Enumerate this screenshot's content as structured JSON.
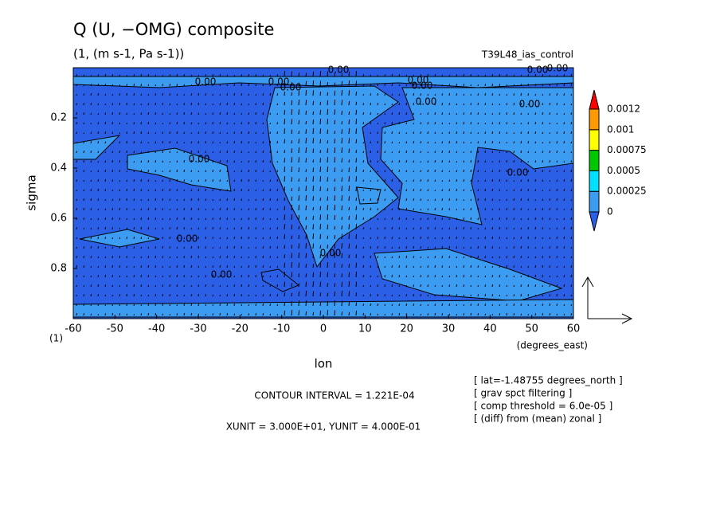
{
  "chart_data": {
    "type": "contour",
    "title": "Q (U, −OMG) composite",
    "subtitle": "(1, (m s-1, Pa s-1))",
    "experiment": "T39L48_ias_control",
    "x_label": "lon",
    "y_label": "sigma",
    "x_unit": "(degrees_east)",
    "y_unit": "(1)",
    "xlim": [
      -60,
      60
    ],
    "xticks": [
      -60,
      -50,
      -40,
      -30,
      -20,
      -10,
      0,
      10,
      20,
      30,
      40,
      50,
      60
    ],
    "ylim": [
      1,
      0
    ],
    "yticks": [
      0.2,
      0.4,
      0.6,
      0.8
    ],
    "contour_interval": "CONTOUR INTERVAL = 1.221E-04",
    "units_note": "XUNIT = 3.000E+01, YUNIT = 4.000E-01",
    "notes": [
      "[ lat=-1.48755 degrees_north ]",
      "[ grav spct filtering ]",
      "[ comp threshold = 6.0e-05 ]",
      "[ (diff) from (mean) zonal ]"
    ],
    "contour_labels": [
      "0.00",
      "0.00",
      "0.00",
      "0.00",
      "0.00",
      "0.00",
      "0.00",
      "0.00",
      "0.00",
      "0.00",
      "0.00",
      "0.00",
      "0.00",
      "0.00",
      "0.00"
    ],
    "colorbar": {
      "levels": [
        0,
        0.00025,
        0.0005,
        0.00075,
        0.001,
        0.0012
      ],
      "colors": [
        "#2a5fe6",
        "#3c9cf2",
        "#00e0ff",
        "#00c800",
        "#ffff00",
        "#ff9900",
        "#ff0000"
      ]
    }
  }
}
